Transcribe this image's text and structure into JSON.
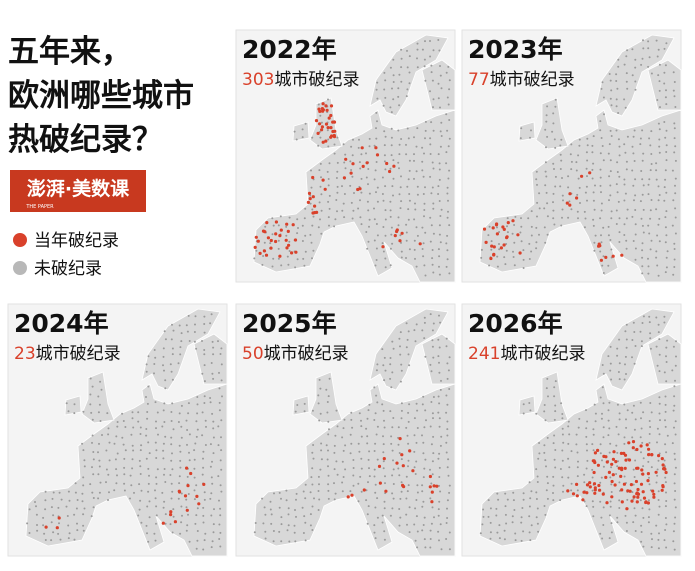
{
  "title": [
    "五年来，",
    "欧洲哪些城市",
    "热破纪录？"
  ],
  "logo": {
    "text": "澎湃·美数课",
    "subtext": "THE PAPER"
  },
  "legend": [
    {
      "label": "当年破纪录",
      "color": "#d9412b"
    },
    {
      "label": "未破纪录",
      "color": "#b8b8b8"
    }
  ],
  "panels": [
    {
      "year": "2022年",
      "count": 303,
      "suffix": "城市破纪录"
    },
    {
      "year": "2023年",
      "count": 77,
      "suffix": "城市破纪录"
    },
    {
      "year": "2024年",
      "count": 23,
      "suffix": "城市破纪录"
    },
    {
      "year": "2025年",
      "count": 50,
      "suffix": "城市破纪录"
    },
    {
      "year": "2026年",
      "count": 241,
      "suffix": "城市破纪录"
    }
  ]
}
